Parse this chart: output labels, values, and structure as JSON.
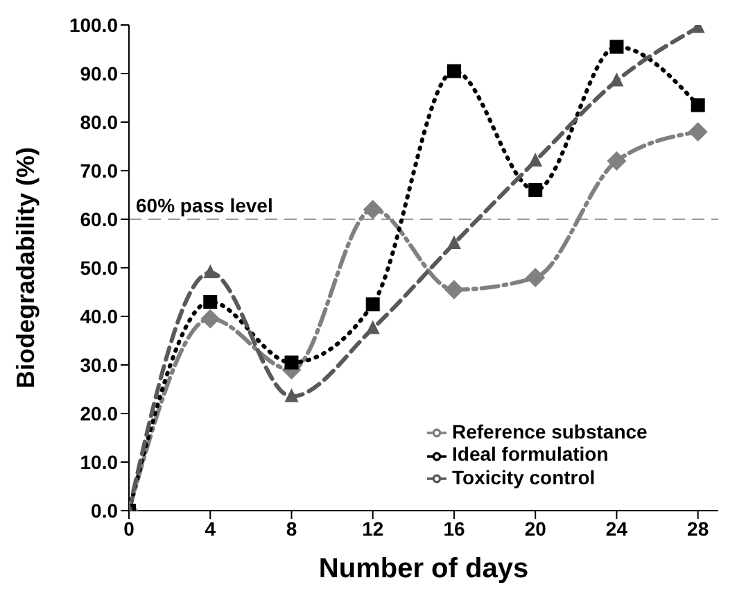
{
  "chart_data": {
    "type": "line",
    "xlabel": "Number of days",
    "ylabel": "Biodegradability (%)",
    "x": [
      0,
      4,
      8,
      12,
      16,
      20,
      24,
      28
    ],
    "xlim": [
      0,
      29
    ],
    "xticks": [
      0,
      4,
      8,
      12,
      16,
      20,
      24,
      28
    ],
    "ylim": [
      0,
      100
    ],
    "yticks": [
      {
        "value": 0,
        "label": "0.0"
      },
      {
        "value": 10,
        "label": "10.0"
      },
      {
        "value": 20,
        "label": "20.0"
      },
      {
        "value": 30,
        "label": "30.0"
      },
      {
        "value": 40,
        "label": "40.0"
      },
      {
        "value": 50,
        "label": "50.0"
      },
      {
        "value": 60,
        "label": "60.0"
      },
      {
        "value": 70,
        "label": "70.0"
      },
      {
        "value": 80,
        "label": "80.0"
      },
      {
        "value": 90,
        "label": "90.0"
      },
      {
        "value": 100,
        "label": "100.0"
      }
    ],
    "legend": "bottom right",
    "ref_lines": [
      {
        "axis": "y",
        "value": 60,
        "label": "60% pass level",
        "color": "#999999",
        "line_style": "dashed"
      }
    ],
    "series": [
      {
        "name": "Reference substance",
        "color": "#808080",
        "marker": "diamond",
        "line_style": "dashdot",
        "values": [
          0,
          39.5,
          29,
          62,
          45.5,
          48,
          72,
          78
        ]
      },
      {
        "name": "Ideal formulation",
        "color": "#000000",
        "marker": "square",
        "line_style": "dotted",
        "values": [
          0,
          43,
          30.5,
          42.5,
          90.5,
          66,
          95.5,
          83.5
        ]
      },
      {
        "name": "Toxicity control",
        "color": "#595959",
        "marker": "triangle",
        "line_style": "dashed",
        "values": [
          0,
          49,
          23.5,
          37.5,
          55,
          72,
          88.5,
          99.5
        ]
      }
    ]
  }
}
